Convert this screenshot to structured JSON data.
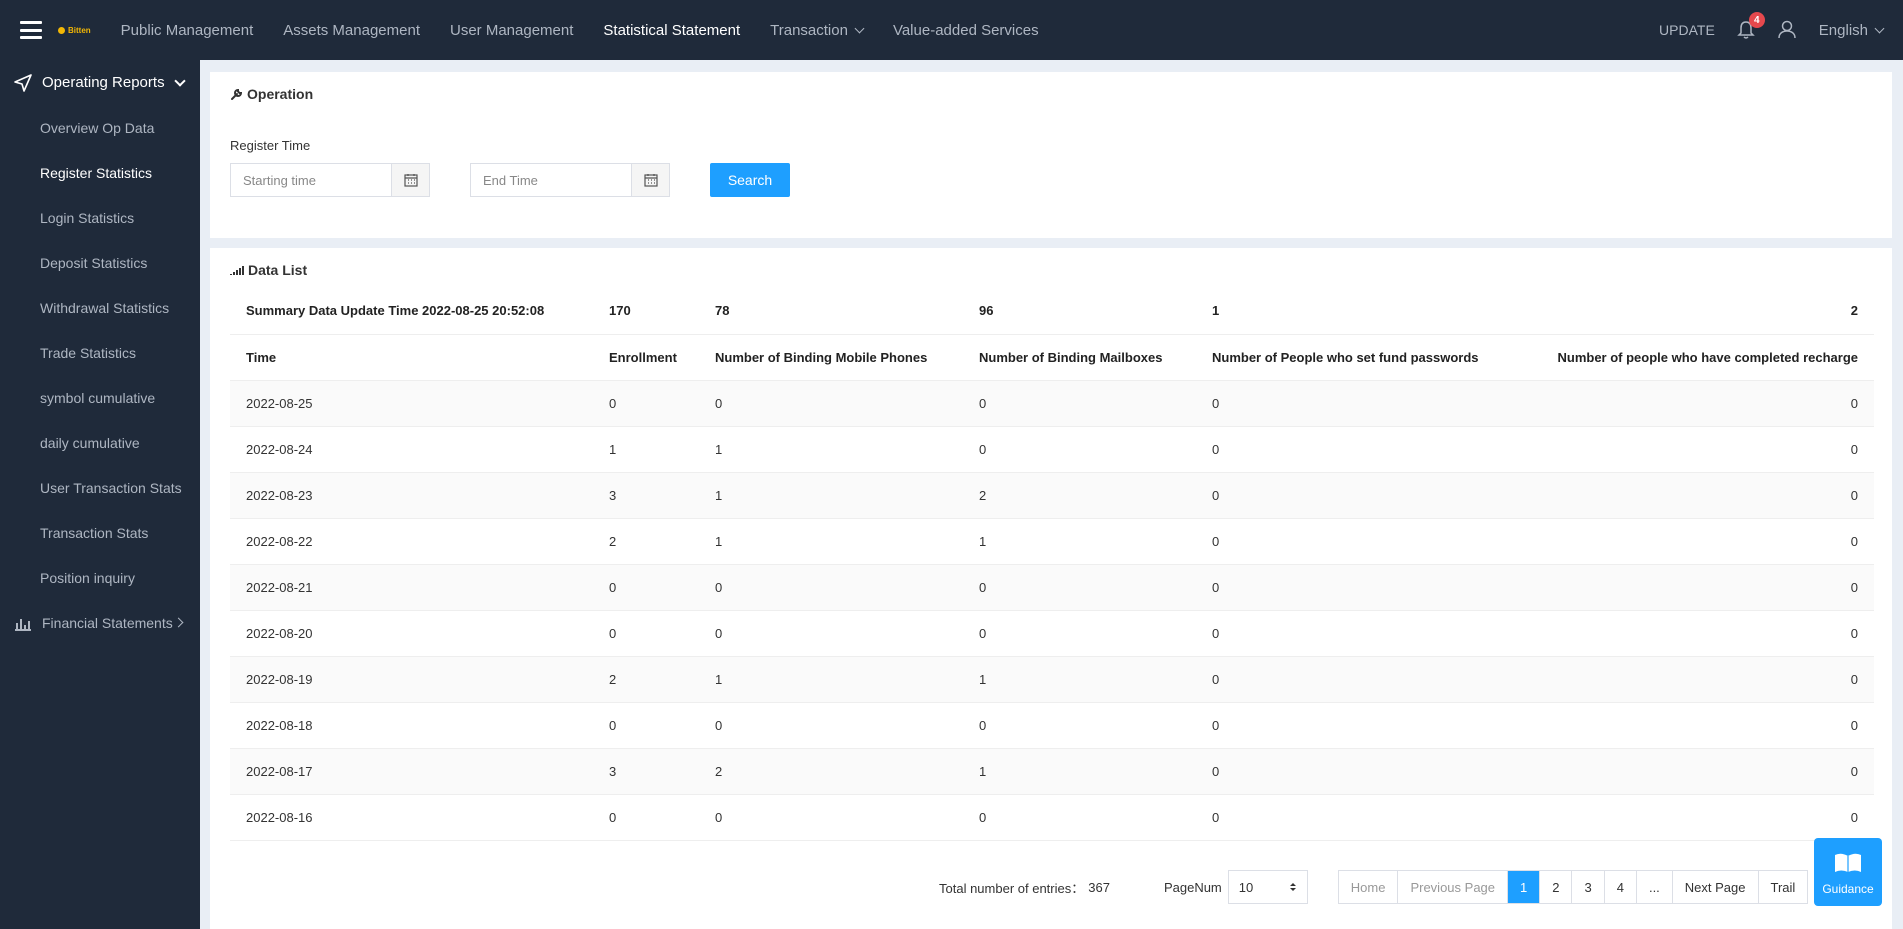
{
  "header": {
    "logo_text": "Bitten",
    "nav": [
      {
        "label": "Public Management"
      },
      {
        "label": "Assets Management"
      },
      {
        "label": "User Management"
      },
      {
        "label": "Statistical Statement"
      },
      {
        "label": "Transaction"
      },
      {
        "label": "Value-added Services"
      }
    ],
    "update_label": "UPDATE",
    "notification_count": "4",
    "language": "English"
  },
  "sidebar": {
    "group_label": "Operating Reports",
    "items": [
      {
        "label": "Overview Op Data"
      },
      {
        "label": "Register Statistics"
      },
      {
        "label": "Login Statistics"
      },
      {
        "label": "Deposit Statistics"
      },
      {
        "label": "Withdrawal Statistics"
      },
      {
        "label": "Trade Statistics"
      },
      {
        "label": "symbol cumulative"
      },
      {
        "label": "daily cumulative"
      },
      {
        "label": "User Transaction Stats"
      },
      {
        "label": "Transaction Stats"
      },
      {
        "label": "Position inquiry"
      }
    ],
    "financial_label": "Financial Statements"
  },
  "operation": {
    "title": "Operation",
    "register_time_label": "Register Time",
    "start_placeholder": "Starting time",
    "end_placeholder": "End Time",
    "search_label": "Search"
  },
  "data_list": {
    "title": "Data List",
    "summary": {
      "label": "Summary Data Update Time 2022-08-25 20:52:08",
      "enrollment": "170",
      "mobile": "78",
      "mailbox": "96",
      "fund_pwd": "1",
      "recharge": "2"
    },
    "columns": {
      "time": "Time",
      "enrollment": "Enrollment",
      "mobile": "Number of Binding Mobile Phones",
      "mailbox": "Number of Binding Mailboxes",
      "fund_pwd": "Number of People who set fund passwords",
      "recharge": "Number of people who have completed recharge"
    },
    "rows": [
      {
        "time": "2022-08-25",
        "enrollment": "0",
        "mobile": "0",
        "mailbox": "0",
        "fund_pwd": "0",
        "recharge": "0"
      },
      {
        "time": "2022-08-24",
        "enrollment": "1",
        "mobile": "1",
        "mailbox": "0",
        "fund_pwd": "0",
        "recharge": "0"
      },
      {
        "time": "2022-08-23",
        "enrollment": "3",
        "mobile": "1",
        "mailbox": "2",
        "fund_pwd": "0",
        "recharge": "0"
      },
      {
        "time": "2022-08-22",
        "enrollment": "2",
        "mobile": "1",
        "mailbox": "1",
        "fund_pwd": "0",
        "recharge": "0"
      },
      {
        "time": "2022-08-21",
        "enrollment": "0",
        "mobile": "0",
        "mailbox": "0",
        "fund_pwd": "0",
        "recharge": "0"
      },
      {
        "time": "2022-08-20",
        "enrollment": "0",
        "mobile": "0",
        "mailbox": "0",
        "fund_pwd": "0",
        "recharge": "0"
      },
      {
        "time": "2022-08-19",
        "enrollment": "2",
        "mobile": "1",
        "mailbox": "1",
        "fund_pwd": "0",
        "recharge": "0"
      },
      {
        "time": "2022-08-18",
        "enrollment": "0",
        "mobile": "0",
        "mailbox": "0",
        "fund_pwd": "0",
        "recharge": "0"
      },
      {
        "time": "2022-08-17",
        "enrollment": "3",
        "mobile": "2",
        "mailbox": "1",
        "fund_pwd": "0",
        "recharge": "0"
      },
      {
        "time": "2022-08-16",
        "enrollment": "0",
        "mobile": "0",
        "mailbox": "0",
        "fund_pwd": "0",
        "recharge": "0"
      }
    ]
  },
  "pagination": {
    "total_label": "Total number of entries：",
    "total": "367",
    "pagenum_label": "PageNum",
    "page_size": "10",
    "home": "Home",
    "prev": "Previous Page",
    "pages": [
      "1",
      "2",
      "3",
      "4",
      "..."
    ],
    "next": "Next Page",
    "trail": "Trail"
  },
  "guidance_label": "Guidance",
  "colors": {
    "accent": "#1e9fff",
    "sidebar_bg": "#1f2a3a",
    "badge": "#e5484d"
  }
}
